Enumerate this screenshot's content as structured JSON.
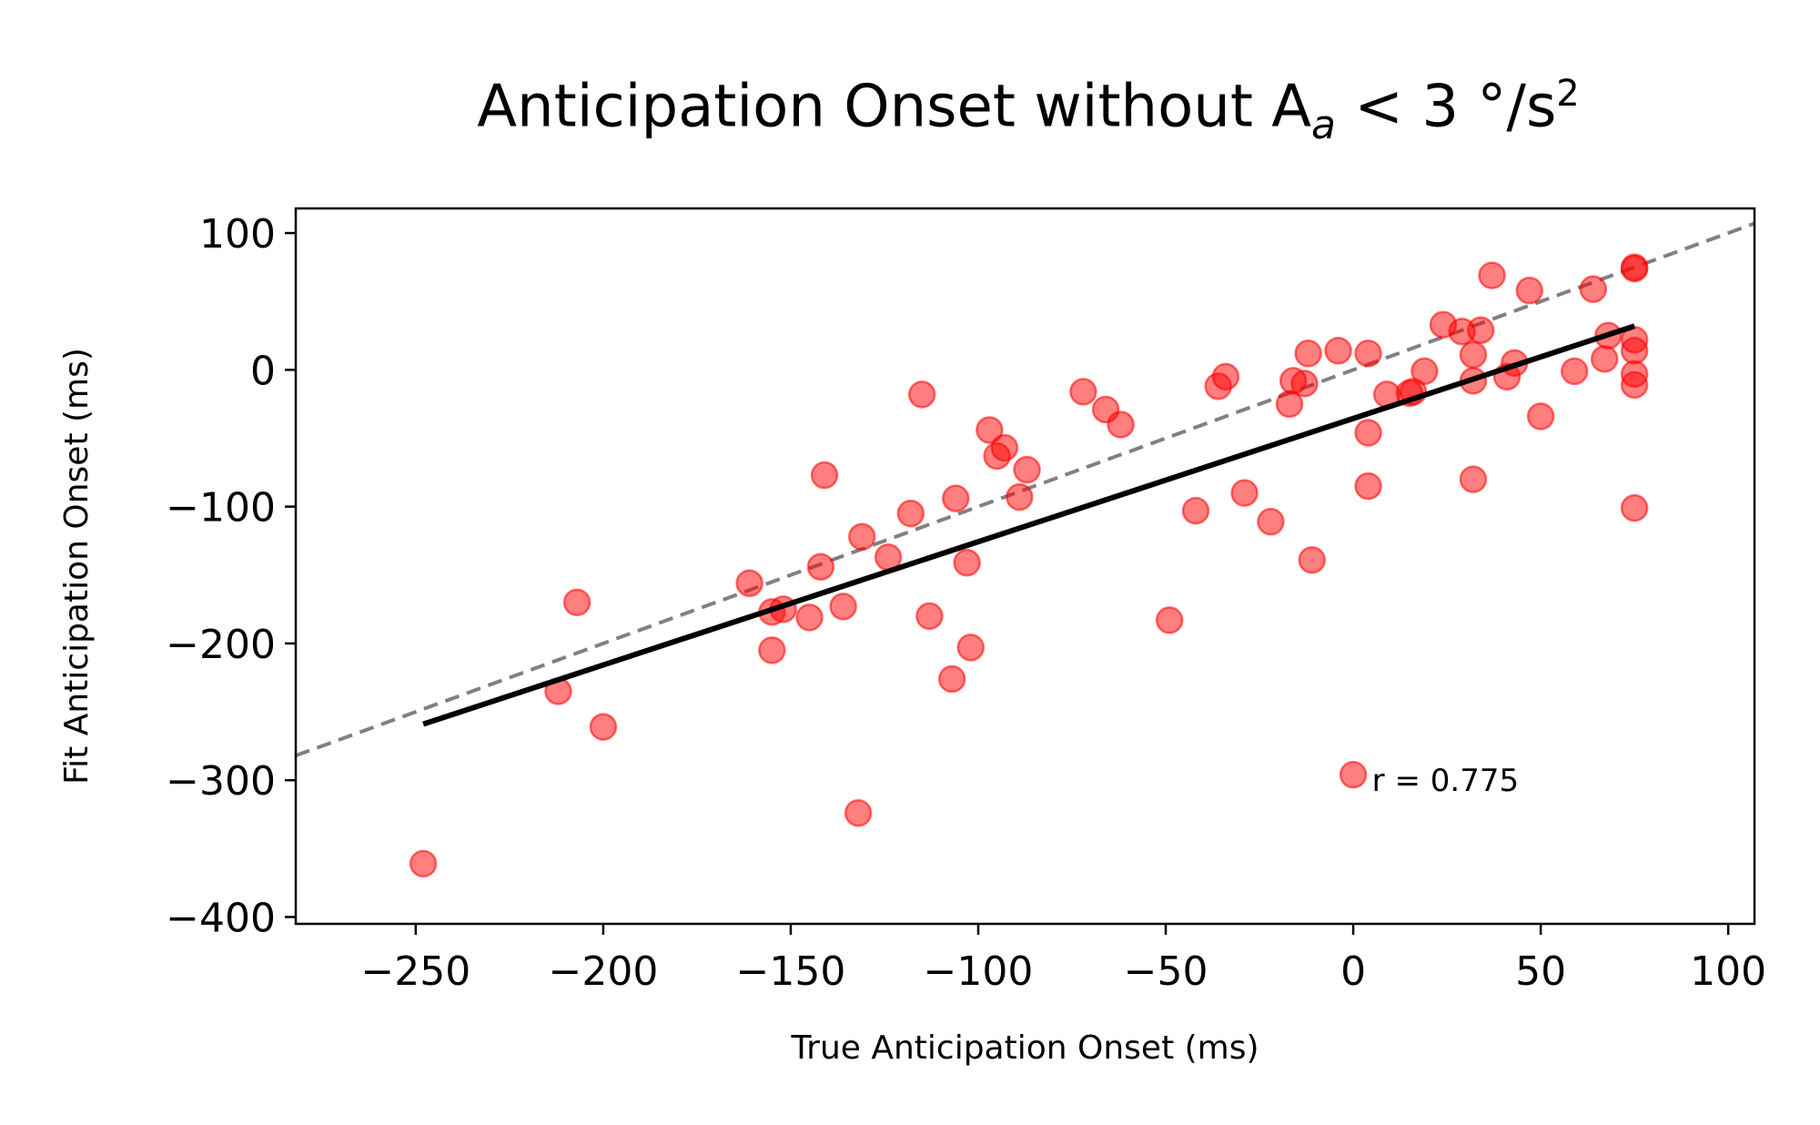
{
  "chart_data": {
    "type": "scatter",
    "title_parts": {
      "prefix": "Anticipation Onset without A",
      "subscript": "a",
      "middle": " < 3 °/s",
      "superscript": "2"
    },
    "xlabel": "True Anticipation Onset (ms)",
    "ylabel": "Fit Anticipation Onset (ms)",
    "xlim": [
      -282,
      107
    ],
    "ylim": [
      -405,
      118
    ],
    "xticks": [
      -250,
      -200,
      -150,
      -100,
      -50,
      0,
      50,
      100
    ],
    "yticks": [
      -400,
      -300,
      -200,
      -100,
      0,
      100
    ],
    "xtick_labels": [
      "−250",
      "−200",
      "−150",
      "−100",
      "−50",
      "0",
      "50",
      "100"
    ],
    "ytick_labels": [
      "−400",
      "−300",
      "−200",
      "−100",
      "0",
      "100"
    ],
    "annotation": "r = 0.775",
    "annotation_pos": {
      "x": 5,
      "y": -308
    },
    "identity_line": {
      "x": [
        -282,
        107
      ],
      "y": [
        -282,
        107
      ],
      "color": "#808080",
      "style": "dashed"
    },
    "fit_line": {
      "x": [
        -248,
        75
      ],
      "y": [
        -259,
        32
      ],
      "color": "#000000"
    },
    "marker_color": "#ff0000",
    "points": [
      {
        "x": -248,
        "y": -361
      },
      {
        "x": -212,
        "y": -235
      },
      {
        "x": -207,
        "y": -170
      },
      {
        "x": -200,
        "y": -261
      },
      {
        "x": -161,
        "y": -156
      },
      {
        "x": -155,
        "y": -177
      },
      {
        "x": -155,
        "y": -205
      },
      {
        "x": -152,
        "y": -175
      },
      {
        "x": -145,
        "y": -181
      },
      {
        "x": -142,
        "y": -144
      },
      {
        "x": -141,
        "y": -77
      },
      {
        "x": -136,
        "y": -173
      },
      {
        "x": -132,
        "y": -324
      },
      {
        "x": -131,
        "y": -122
      },
      {
        "x": -124,
        "y": -137
      },
      {
        "x": -118,
        "y": -105
      },
      {
        "x": -115,
        "y": -18
      },
      {
        "x": -113,
        "y": -180
      },
      {
        "x": -107,
        "y": -226
      },
      {
        "x": -106,
        "y": -94
      },
      {
        "x": -103,
        "y": -141
      },
      {
        "x": -102,
        "y": -203
      },
      {
        "x": -97,
        "y": -44
      },
      {
        "x": -95,
        "y": -63
      },
      {
        "x": -93,
        "y": -57
      },
      {
        "x": -89,
        "y": -93
      },
      {
        "x": -87,
        "y": -73
      },
      {
        "x": -72,
        "y": -16
      },
      {
        "x": -66,
        "y": -29
      },
      {
        "x": -62,
        "y": -40
      },
      {
        "x": -49,
        "y": -183
      },
      {
        "x": -42,
        "y": -103
      },
      {
        "x": -36,
        "y": -12
      },
      {
        "x": -34,
        "y": -5
      },
      {
        "x": -29,
        "y": -90
      },
      {
        "x": -22,
        "y": -111
      },
      {
        "x": -17,
        "y": -25
      },
      {
        "x": -16,
        "y": -8
      },
      {
        "x": -13,
        "y": -10
      },
      {
        "x": -12,
        "y": 12
      },
      {
        "x": -11,
        "y": -139
      },
      {
        "x": -4,
        "y": 14
      },
      {
        "x": 0,
        "y": -296
      },
      {
        "x": 4,
        "y": 12
      },
      {
        "x": 4,
        "y": -46
      },
      {
        "x": 4,
        "y": -85
      },
      {
        "x": 9,
        "y": -18
      },
      {
        "x": 15,
        "y": -17
      },
      {
        "x": 16,
        "y": -16
      },
      {
        "x": 19,
        "y": -1
      },
      {
        "x": 24,
        "y": 33
      },
      {
        "x": 29,
        "y": 28
      },
      {
        "x": 32,
        "y": 11
      },
      {
        "x": 32,
        "y": -8
      },
      {
        "x": 32,
        "y": -80
      },
      {
        "x": 34,
        "y": 29
      },
      {
        "x": 37,
        "y": 69
      },
      {
        "x": 41,
        "y": -5
      },
      {
        "x": 43,
        "y": 5
      },
      {
        "x": 47,
        "y": 58
      },
      {
        "x": 50,
        "y": -34
      },
      {
        "x": 59,
        "y": -1
      },
      {
        "x": 64,
        "y": 59
      },
      {
        "x": 67,
        "y": 8
      },
      {
        "x": 68,
        "y": 25
      },
      {
        "x": 75,
        "y": 75
      },
      {
        "x": 75,
        "y": 74
      },
      {
        "x": 75,
        "y": 22
      },
      {
        "x": 75,
        "y": 14
      },
      {
        "x": 75,
        "y": -3
      },
      {
        "x": 75,
        "y": -11
      },
      {
        "x": 75,
        "y": -101
      }
    ]
  }
}
